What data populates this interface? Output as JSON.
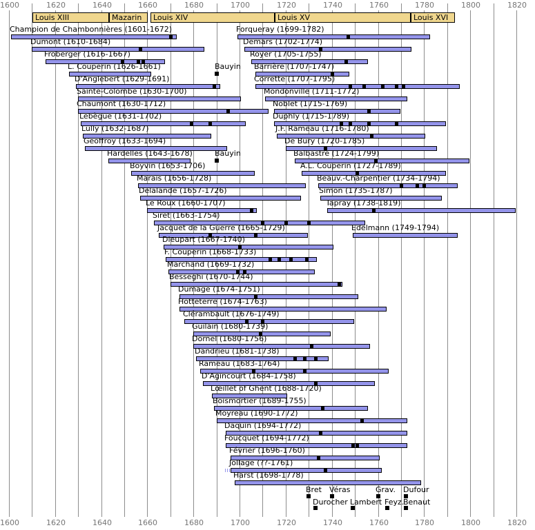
{
  "chart_data": {
    "type": "bar",
    "subtype": "timeline-gantt",
    "title": "French harpsichord composers timeline 1600-1820",
    "axis": {
      "start_year": 1600,
      "end_year": 1820,
      "major_step": 20,
      "minor_step": 10,
      "major_labels": [
        "1600",
        "1620",
        "1640",
        "1660",
        "1680",
        "1700",
        "1720",
        "1740",
        "1760",
        "1780",
        "1800",
        "1820"
      ],
      "grid": "on",
      "labels_position": "top-and-bottom"
    },
    "reigns": [
      {
        "label": "Louis XIII",
        "start": 1610,
        "end": 1643
      },
      {
        "label": "Mazarin",
        "start": 1643,
        "end": 1660
      },
      {
        "label": "Louis XIV",
        "start": 1661,
        "end": 1715
      },
      {
        "label": "Louis XV",
        "start": 1715,
        "end": 1774
      },
      {
        "label": "Louis XVI",
        "start": 1774,
        "end": 1793
      }
    ],
    "composers": [
      {
        "row": 1,
        "label": "Champion de Chambonnières (1601-1672)",
        "start": 1601,
        "end": 1672,
        "marks": [
          1670
        ]
      },
      {
        "row": 2,
        "label": "Dumont (1610-1684)",
        "start": 1610,
        "end": 1684,
        "marks": [
          1657
        ]
      },
      {
        "row": 3,
        "label": "Froberger (1616-1667)",
        "start": 1616,
        "end": 1667,
        "marks": [
          1649,
          1656,
          1658
        ]
      },
      {
        "row": 4,
        "label": "L. Couperin (1626-1661)",
        "start": 1626,
        "end": 1661,
        "marks": []
      },
      {
        "row": 5,
        "label": "D'Anglebert (1629-1691)",
        "start": 1629,
        "end": 1691,
        "marks": [
          1689
        ]
      },
      {
        "row": 6,
        "label": "Sainte-Colombe (1630-1700)",
        "start": 1630,
        "end": 1700,
        "marks": []
      },
      {
        "row": 7,
        "label": "Chaumont (1630-1712)",
        "start": 1630,
        "end": 1712,
        "marks": [
          1695
        ]
      },
      {
        "row": 8,
        "label": "Lebègue (1631-1702)",
        "start": 1631,
        "end": 1702,
        "marks": [
          1679,
          1687
        ]
      },
      {
        "row": 9,
        "label": "Lully (1632-1687)",
        "start": 1632,
        "end": 1687,
        "marks": []
      },
      {
        "row": 10,
        "label": "Geoffroy (1633-1694)",
        "start": 1633,
        "end": 1694,
        "marks": []
      },
      {
        "row": 11,
        "label": "Hardelles (1643-1678)",
        "start": 1643,
        "end": 1678,
        "marks": []
      },
      {
        "row": 12,
        "label": "Boyvin (1653-1706)",
        "start": 1653,
        "end": 1706,
        "marks": []
      },
      {
        "row": 13,
        "label": "Marais (1656-1728)",
        "start": 1656,
        "end": 1728,
        "marks": []
      },
      {
        "row": 14,
        "label": "Delalande (1657-1726)",
        "start": 1657,
        "end": 1726,
        "marks": []
      },
      {
        "row": 15,
        "label": "Le Roux (1660-1707)",
        "start": 1660,
        "end": 1707,
        "marks": [
          1705
        ]
      },
      {
        "row": 16,
        "label": "Siret (1663-1754)",
        "start": 1663,
        "end": 1754,
        "marks": [
          1710,
          1720,
          1730
        ]
      },
      {
        "row": 17,
        "label": "Jacquet de la Guerre (1665-1729)",
        "start": 1665,
        "end": 1729,
        "marks": [
          1687,
          1707
        ]
      },
      {
        "row": 18,
        "label": "Dieupart (1667-1740)",
        "start": 1667,
        "end": 1740,
        "marks": [
          1700
        ]
      },
      {
        "row": 19,
        "label": "F. Couperin (1668-1733)",
        "start": 1668,
        "end": 1733,
        "marks": [
          1713,
          1717,
          1722,
          1729
        ]
      },
      {
        "row": 20,
        "label": "Marchand (1669-1732)",
        "start": 1669,
        "end": 1732,
        "marks": [
          1699,
          1702
        ]
      },
      {
        "row": 21,
        "label": "Besseghi (1670-1744)",
        "start": 1670,
        "end": 1744,
        "marks": [
          1743
        ]
      },
      {
        "row": 22,
        "label": "Dumage (1674-1751)",
        "start": 1674,
        "end": 1751,
        "marks": [
          1707
        ]
      },
      {
        "row": 23,
        "label": "Hotteterre (1674-1763)",
        "start": 1674,
        "end": 1763,
        "marks": []
      },
      {
        "row": 24,
        "label": "Clérambault (1676-1749)",
        "start": 1676,
        "end": 1749,
        "marks": [
          1703,
          1710
        ]
      },
      {
        "row": 25,
        "label": "Guilain (1680-1739)",
        "start": 1680,
        "end": 1739,
        "marks": [
          1709
        ]
      },
      {
        "row": 26,
        "label": "Dornel (1680-1756)",
        "start": 1680,
        "end": 1756,
        "marks": [
          1731
        ]
      },
      {
        "row": 27,
        "label": "Dandrieu (1681-1738)",
        "start": 1681,
        "end": 1738,
        "marks": [
          1724,
          1728,
          1733
        ]
      },
      {
        "row": 28,
        "label": "Rameau (1683-1764)",
        "start": 1683,
        "end": 1764,
        "marks": [
          1706,
          1728
        ]
      },
      {
        "row": 29,
        "label": "D'Agincourt (1684-1758)",
        "start": 1684,
        "end": 1758,
        "marks": [
          1733
        ]
      },
      {
        "row": 30,
        "label": "Lœillet of Ghent (1688-1720)",
        "start": 1688,
        "end": 1720,
        "marks": []
      },
      {
        "row": 31,
        "label": "Boismortier (1689-1755)",
        "start": 1689,
        "end": 1755,
        "marks": [
          1736
        ]
      },
      {
        "row": 32,
        "label": "Moyreau (1690-1772)",
        "start": 1690,
        "end": 1772,
        "marks": [
          1753
        ]
      },
      {
        "row": 33,
        "label": "Daquin (1694-1772)",
        "start": 1694,
        "end": 1772,
        "marks": [
          1735
        ]
      },
      {
        "row": 34,
        "label": "Foucquet (1694-1772)",
        "start": 1694,
        "end": 1772,
        "marks": [
          1749,
          1751
        ]
      },
      {
        "row": 35,
        "label": "Février (1696-1760)",
        "start": 1696,
        "end": 1760,
        "marks": [
          1734
        ]
      },
      {
        "row": 36,
        "label": "Jollage (??-1761)",
        "start": 1696,
        "end": 1761,
        "marks": [
          1737
        ],
        "uncertain_start": true
      },
      {
        "row": 37,
        "label": "Harst (1698-1778)",
        "start": 1698,
        "end": 1778,
        "marks": []
      },
      {
        "row": 1,
        "label": "Forqueray (1699-1782)",
        "start": 1699,
        "end": 1782,
        "marks": [
          1747
        ]
      },
      {
        "row": 2,
        "label": "Demars (1702-1774)",
        "start": 1702,
        "end": 1774,
        "marks": [
          1735
        ]
      },
      {
        "row": 3,
        "label": "Royer (1705-1755)",
        "start": 1705,
        "end": 1755,
        "marks": [
          1746
        ]
      },
      {
        "row": 4,
        "label": "Barrière (1707-1747)",
        "start": 1707,
        "end": 1747,
        "marks": [
          1740
        ]
      },
      {
        "row": 5,
        "label": "Corrette (1707-1795)",
        "start": 1707,
        "end": 1795,
        "marks": [
          1748,
          1754,
          1762,
          1768,
          1771
        ]
      },
      {
        "row": 6,
        "label": "Mondonville (1711-1772)",
        "start": 1711,
        "end": 1772,
        "marks": []
      },
      {
        "row": 7,
        "label": "Noblet (1715-1769)",
        "start": 1715,
        "end": 1769,
        "marks": [
          1756
        ]
      },
      {
        "row": 8,
        "label": "Duphly (1715-1789)",
        "start": 1715,
        "end": 1789,
        "marks": [
          1744,
          1748,
          1756,
          1768
        ]
      },
      {
        "row": 9,
        "label": "J.F. Rameau (1716-1780)",
        "start": 1716,
        "end": 1780,
        "marks": [
          1757
        ]
      },
      {
        "row": 10,
        "label": "De Bury (1720-1785)",
        "start": 1720,
        "end": 1785,
        "marks": [
          1737
        ]
      },
      {
        "row": 11,
        "label": "Balbastre (1724-1799)",
        "start": 1724,
        "end": 1799,
        "marks": [
          1759
        ]
      },
      {
        "row": 12,
        "label": "A.L. Couperin (1727-1789)",
        "start": 1727,
        "end": 1789,
        "marks": [
          1751
        ]
      },
      {
        "row": 13,
        "label": "Beauv.-Charpentier (1734-1794)",
        "start": 1734,
        "end": 1794,
        "marks": [
          1770,
          1777,
          1780
        ]
      },
      {
        "row": 14,
        "label": "Simon (1735-1787)",
        "start": 1735,
        "end": 1787,
        "marks": []
      },
      {
        "row": 15,
        "label": "Tapray (1738-1819)",
        "start": 1738,
        "end": 1819,
        "marks": [
          1758
        ]
      },
      {
        "row": 17,
        "label": "Edelmann (1749-1794)",
        "start": 1749,
        "end": 1794,
        "marks": []
      }
    ],
    "annotations": [
      {
        "label": "Bauyin",
        "year": 1690,
        "row": 4
      },
      {
        "label": "Bauyin",
        "year": 1690,
        "row": 11
      }
    ],
    "flourished": [
      {
        "label": "Bret",
        "year": 1730,
        "line": 1
      },
      {
        "label": "Véras",
        "year": 1740,
        "line": 1
      },
      {
        "label": "Grav.",
        "year": 1760,
        "line": 1
      },
      {
        "label": "Dufour",
        "year": 1772,
        "line": 1
      },
      {
        "label": "Durocher",
        "year": 1733,
        "line": 2
      },
      {
        "label": "Lambert",
        "year": 1749,
        "line": 2
      },
      {
        "label": "Feyz.",
        "year": 1764,
        "line": 2
      },
      {
        "label": "Benaut",
        "year": 1772,
        "line": 2
      }
    ],
    "colors": {
      "bar_fill": "#9494ea",
      "bar_border": "#000000",
      "marker": "#000000",
      "reign_fill": "#f0d78e",
      "reign_border": "#000000",
      "grid": "#8c8c8c",
      "axis_text": "#757575",
      "label_text": "#000000",
      "background": "#ffffff"
    }
  }
}
